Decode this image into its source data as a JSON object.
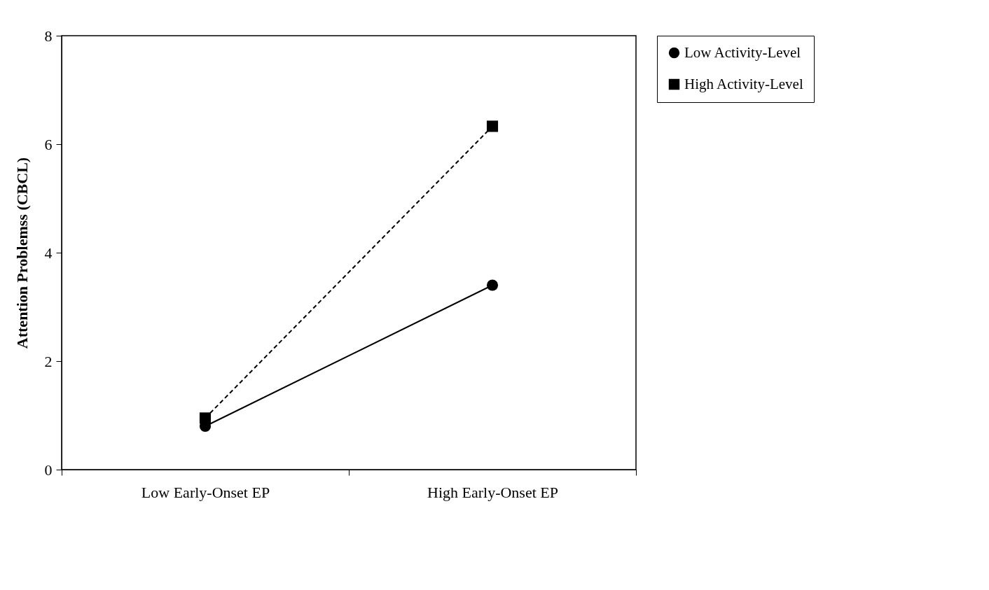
{
  "chart_data": {
    "type": "line",
    "ylabel": "Attention Problemss (CBCL)",
    "categories": [
      "Low Early-Onset EP",
      "High Early-Onset EP"
    ],
    "series": [
      {
        "name": "Low Activity-Level",
        "color": "#000000",
        "marker": "circle",
        "line_style": "solid",
        "values": [
          0.8,
          3.4
        ]
      },
      {
        "name": "High Activity-Level",
        "color": "#000000",
        "marker": "square",
        "line_style": "dashed",
        "values": [
          0.95,
          6.33
        ]
      }
    ],
    "ylim": [
      0,
      8
    ],
    "yticks": [
      0,
      2,
      4,
      6,
      8
    ],
    "grid": false,
    "legend": "top right"
  }
}
